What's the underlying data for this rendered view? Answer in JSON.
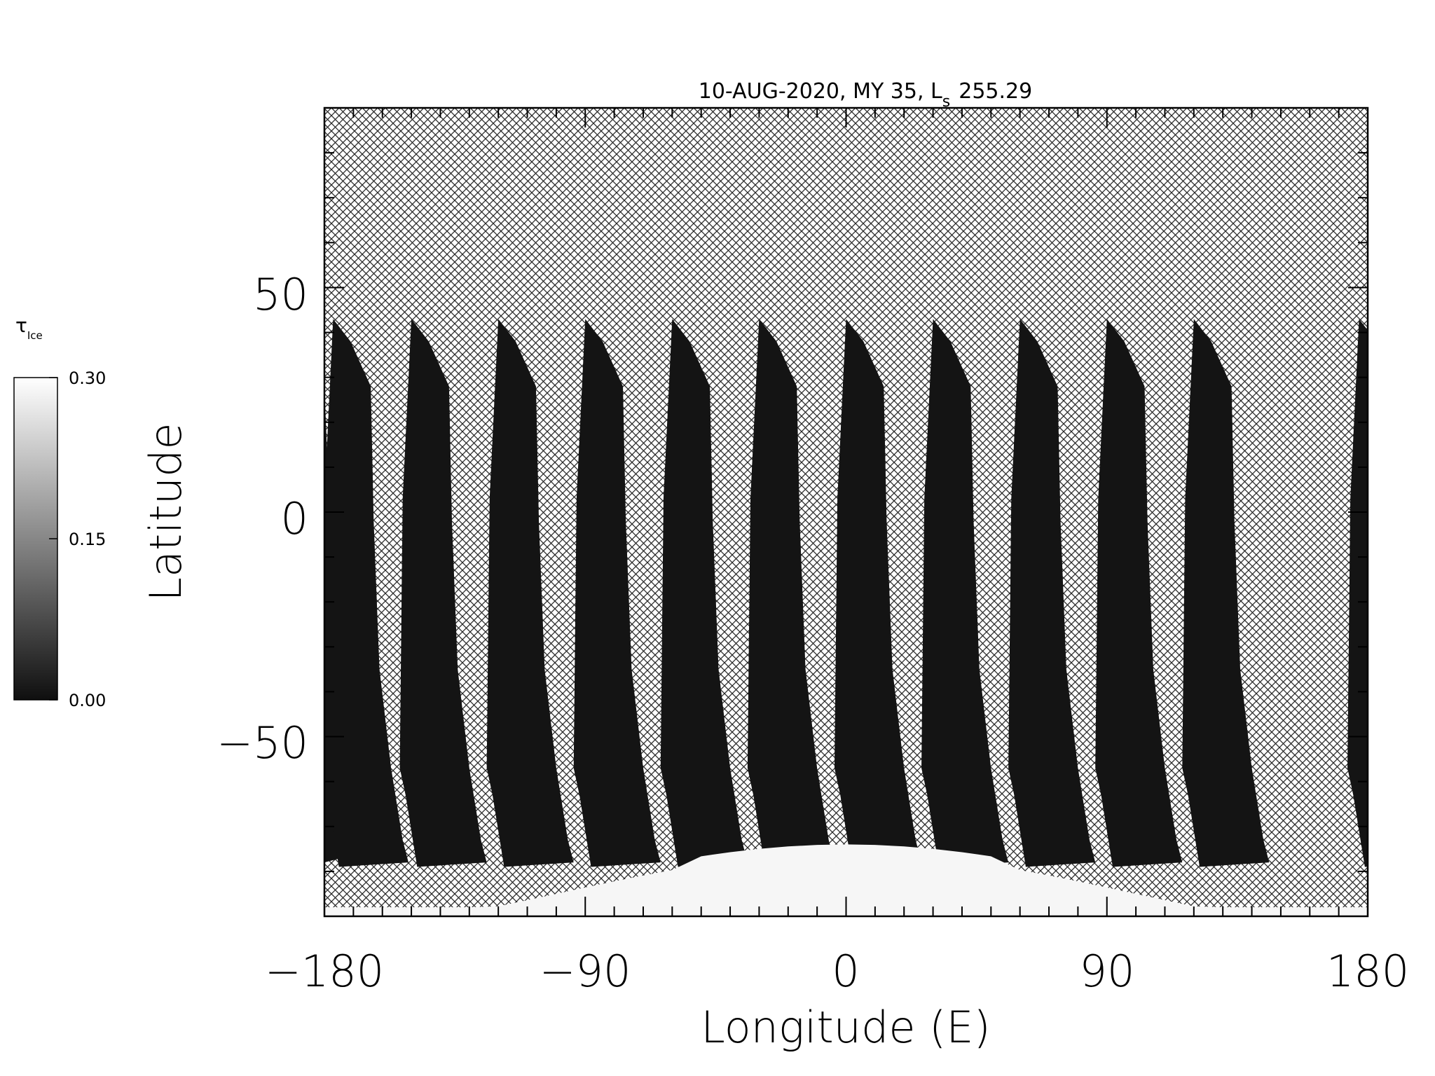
{
  "chart_data": {
    "type": "heatmap",
    "title": "10-AUG-2020, MY 35,  L",
    "title_subscript": "s",
    "title_value": "255.29",
    "xlabel": "Longitude (E)",
    "ylabel": "Latitude",
    "xlim": [
      -180,
      180
    ],
    "ylim": [
      -90,
      90
    ],
    "x_ticks": [
      -180,
      -90,
      0,
      90,
      180
    ],
    "x_tick_labels": [
      "−180",
      "−90",
      "0",
      "90",
      "180"
    ],
    "y_ticks": [
      -50,
      0,
      50
    ],
    "y_tick_labels": [
      "−50",
      "0",
      "50"
    ],
    "x_minor_step": 10,
    "y_minor_step": 10,
    "grid": false,
    "no_data_fill": "crosshatch",
    "colorbar": {
      "label": "τ",
      "label_subscript": "Ice",
      "min": 0.0,
      "max": 0.3,
      "tick_labels": [
        "0.30",
        "0.15",
        "0.00"
      ],
      "tick_values": [
        0.3,
        0.15,
        0.0
      ],
      "colormap": "grayscale",
      "placement": "left"
    },
    "swaths": {
      "count": 13,
      "start_longitudes": [
        -180,
        -177,
        -150,
        -120,
        -90,
        -60,
        -30,
        0,
        30,
        60,
        90,
        120,
        177
      ],
      "north_edge_latitude": 43,
      "south_edge_latitude": -77,
      "typical_value": 0.02
    },
    "south_polar_cap": {
      "latitude_edge": -73,
      "value": 0.3
    }
  },
  "colors": {
    "background": "#ffffff",
    "swath": "#141414",
    "hatch": "#2a2a2a",
    "ice_cap": "#f6f6f6",
    "axis": "#000000"
  }
}
